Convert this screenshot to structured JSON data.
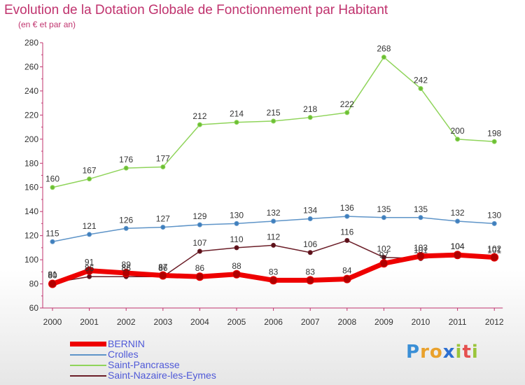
{
  "chart_data": {
    "type": "line",
    "title": "Evolution de la Dotation Globale de Fonctionnement par Habitant",
    "subtitle": "(en € et par an)",
    "x": [
      "2000",
      "2001",
      "2002",
      "2003",
      "2004",
      "2005",
      "2006",
      "2007",
      "2008",
      "2009",
      "2010",
      "2011",
      "2012"
    ],
    "ylim": [
      60,
      280
    ],
    "yticks": [
      60,
      80,
      100,
      120,
      140,
      160,
      180,
      200,
      220,
      240,
      260,
      280
    ],
    "grid": false,
    "legend_position": "bottom-left",
    "series": [
      {
        "name": "Saint-Pancrasse",
        "color": "#8fd45a",
        "values": [
          160,
          167,
          176,
          177,
          212,
          214,
          215,
          218,
          222,
          268,
          242,
          200,
          198
        ]
      },
      {
        "name": "Crolles",
        "color": "#5e94c8",
        "values": [
          115,
          121,
          126,
          127,
          129,
          130,
          132,
          134,
          136,
          135,
          135,
          132,
          130
        ]
      },
      {
        "name": "Saint-Nazaire-les-Eymes",
        "color": "#6b1e28",
        "values": [
          81,
          86,
          86,
          86,
          107,
          110,
          112,
          106,
          116,
          102,
          101,
          104,
          101
        ]
      },
      {
        "name": "BERNIN",
        "color": "#ee0000",
        "values": [
          80,
          91,
          89,
          87,
          86,
          88,
          83,
          83,
          84,
          97,
          103,
          104,
          102
        ]
      }
    ]
  },
  "legend": {
    "items": [
      {
        "label": "BERNIN",
        "color": "#ee0000"
      },
      {
        "label": "Crolles",
        "color": "#5e94c8"
      },
      {
        "label": "Saint-Pancrasse",
        "color": "#8fd45a"
      },
      {
        "label": "Saint-Nazaire-les-Eymes",
        "color": "#6b1e28"
      }
    ],
    "label_color": "#4f59d8"
  },
  "brand": {
    "letters": [
      "P",
      "r",
      "o",
      "x",
      "i",
      "t",
      "i"
    ],
    "colors": [
      "#3a8fd6",
      "#e9a12c",
      "#e9a12c",
      "#2c6fd1",
      "#9ac53a",
      "#e5504f",
      "#9ac53a"
    ]
  }
}
